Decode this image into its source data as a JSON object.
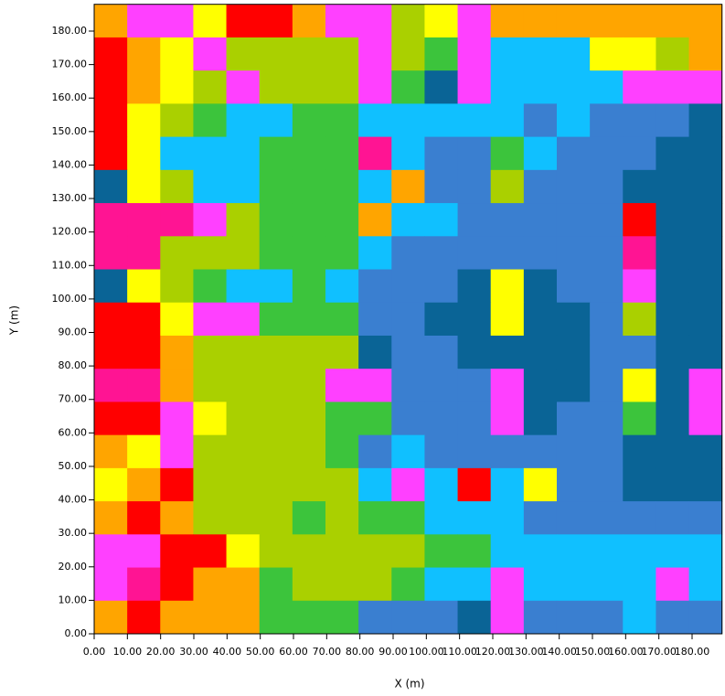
{
  "chart_data": {
    "type": "heatmap",
    "xlabel": "X (m)",
    "ylabel": "Y (m)",
    "xlim": [
      0,
      189
    ],
    "ylim": [
      0,
      188
    ],
    "xticks": [
      {
        "value": 0,
        "label": "0.00"
      },
      {
        "value": 10,
        "label": "10.00"
      },
      {
        "value": 20,
        "label": "20.00"
      },
      {
        "value": 30,
        "label": "30.00"
      },
      {
        "value": 40,
        "label": "40.00"
      },
      {
        "value": 50,
        "label": "50.00"
      },
      {
        "value": 60,
        "label": "60.00"
      },
      {
        "value": 70,
        "label": "70.00"
      },
      {
        "value": 80,
        "label": "80.00"
      },
      {
        "value": 90,
        "label": "90.00"
      },
      {
        "value": 100,
        "label": "100.00"
      },
      {
        "value": 110,
        "label": "110.00"
      },
      {
        "value": 120,
        "label": "120.00"
      },
      {
        "value": 130,
        "label": "130.00"
      },
      {
        "value": 140,
        "label": "140.00"
      },
      {
        "value": 150,
        "label": "150.00"
      },
      {
        "value": 160,
        "label": "160.00"
      },
      {
        "value": 170,
        "label": "170.00"
      },
      {
        "value": 180,
        "label": "180.00"
      }
    ],
    "yticks": [
      {
        "value": 0,
        "label": "0.00"
      },
      {
        "value": 10,
        "label": "10.00"
      },
      {
        "value": 20,
        "label": "20.00"
      },
      {
        "value": 30,
        "label": "30.00"
      },
      {
        "value": 40,
        "label": "40.00"
      },
      {
        "value": 50,
        "label": "50.00"
      },
      {
        "value": 60,
        "label": "60.00"
      },
      {
        "value": 70,
        "label": "70.00"
      },
      {
        "value": 80,
        "label": "80.00"
      },
      {
        "value": 90,
        "label": "90.00"
      },
      {
        "value": 100,
        "label": "100.00"
      },
      {
        "value": 110,
        "label": "110.00"
      },
      {
        "value": 120,
        "label": "120.00"
      },
      {
        "value": 130,
        "label": "130.00"
      },
      {
        "value": 140,
        "label": "140.00"
      },
      {
        "value": 150,
        "label": "150.00"
      },
      {
        "value": 160,
        "label": "160.00"
      },
      {
        "value": 170,
        "label": "170.00"
      },
      {
        "value": 180,
        "label": "180.00"
      }
    ],
    "colors": [
      "#ff0000",
      "#ffa500",
      "#ffff00",
      "#aad000",
      "#3cc43c",
      "#10c0ff",
      "#3a7fd0",
      "#0a6496",
      "#ff40ff",
      "#ff1493"
    ],
    "values": [
      [
        1,
        8,
        8,
        2,
        0,
        0,
        1,
        8,
        8,
        3,
        2,
        8,
        1,
        1,
        1,
        1,
        1,
        1,
        1
      ],
      [
        0,
        1,
        2,
        8,
        3,
        3,
        3,
        3,
        8,
        3,
        4,
        8,
        5,
        5,
        5,
        2,
        2,
        3,
        1
      ],
      [
        0,
        1,
        2,
        3,
        8,
        3,
        3,
        3,
        8,
        4,
        7,
        8,
        5,
        5,
        5,
        5,
        8,
        8,
        8
      ],
      [
        0,
        2,
        3,
        4,
        5,
        5,
        4,
        4,
        5,
        5,
        5,
        5,
        5,
        6,
        5,
        6,
        6,
        6,
        7
      ],
      [
        0,
        2,
        5,
        5,
        5,
        4,
        4,
        4,
        9,
        5,
        6,
        6,
        4,
        5,
        6,
        6,
        6,
        7,
        7
      ],
      [
        7,
        2,
        3,
        5,
        5,
        4,
        4,
        4,
        5,
        1,
        6,
        6,
        3,
        6,
        6,
        6,
        7,
        7,
        7
      ],
      [
        9,
        9,
        9,
        8,
        3,
        4,
        4,
        4,
        1,
        5,
        5,
        6,
        6,
        6,
        6,
        6,
        0,
        7,
        7
      ],
      [
        9,
        9,
        3,
        3,
        3,
        4,
        4,
        4,
        5,
        6,
        6,
        6,
        6,
        6,
        6,
        6,
        9,
        7,
        7
      ],
      [
        7,
        2,
        3,
        4,
        5,
        5,
        4,
        5,
        6,
        6,
        6,
        7,
        2,
        7,
        6,
        6,
        8,
        7,
        7
      ],
      [
        0,
        0,
        2,
        8,
        8,
        4,
        4,
        4,
        6,
        6,
        7,
        7,
        2,
        7,
        7,
        6,
        3,
        7,
        7
      ],
      [
        0,
        0,
        1,
        3,
        3,
        3,
        3,
        3,
        7,
        6,
        6,
        7,
        7,
        7,
        7,
        6,
        6,
        7,
        7
      ],
      [
        9,
        9,
        1,
        3,
        3,
        3,
        3,
        8,
        8,
        6,
        6,
        6,
        8,
        7,
        7,
        6,
        2,
        7,
        8
      ],
      [
        0,
        0,
        8,
        2,
        3,
        3,
        3,
        4,
        4,
        6,
        6,
        6,
        8,
        7,
        6,
        6,
        4,
        7,
        8
      ],
      [
        1,
        2,
        8,
        3,
        3,
        3,
        3,
        4,
        6,
        5,
        6,
        6,
        6,
        6,
        6,
        6,
        7,
        7,
        7
      ],
      [
        2,
        1,
        0,
        3,
        3,
        3,
        3,
        3,
        5,
        8,
        5,
        0,
        5,
        2,
        6,
        6,
        7,
        7,
        7
      ],
      [
        1,
        0,
        1,
        3,
        3,
        3,
        4,
        3,
        4,
        4,
        5,
        5,
        5,
        6,
        6,
        6,
        6,
        6,
        6
      ],
      [
        8,
        8,
        0,
        0,
        2,
        3,
        3,
        3,
        3,
        3,
        4,
        4,
        5,
        5,
        5,
        5,
        5,
        5,
        5
      ],
      [
        8,
        9,
        0,
        1,
        1,
        4,
        3,
        3,
        3,
        4,
        5,
        5,
        8,
        5,
        5,
        5,
        5,
        8,
        5
      ],
      [
        1,
        0,
        1,
        1,
        1,
        4,
        4,
        4,
        6,
        6,
        6,
        7,
        8,
        6,
        6,
        6,
        5,
        6,
        6
      ]
    ]
  }
}
